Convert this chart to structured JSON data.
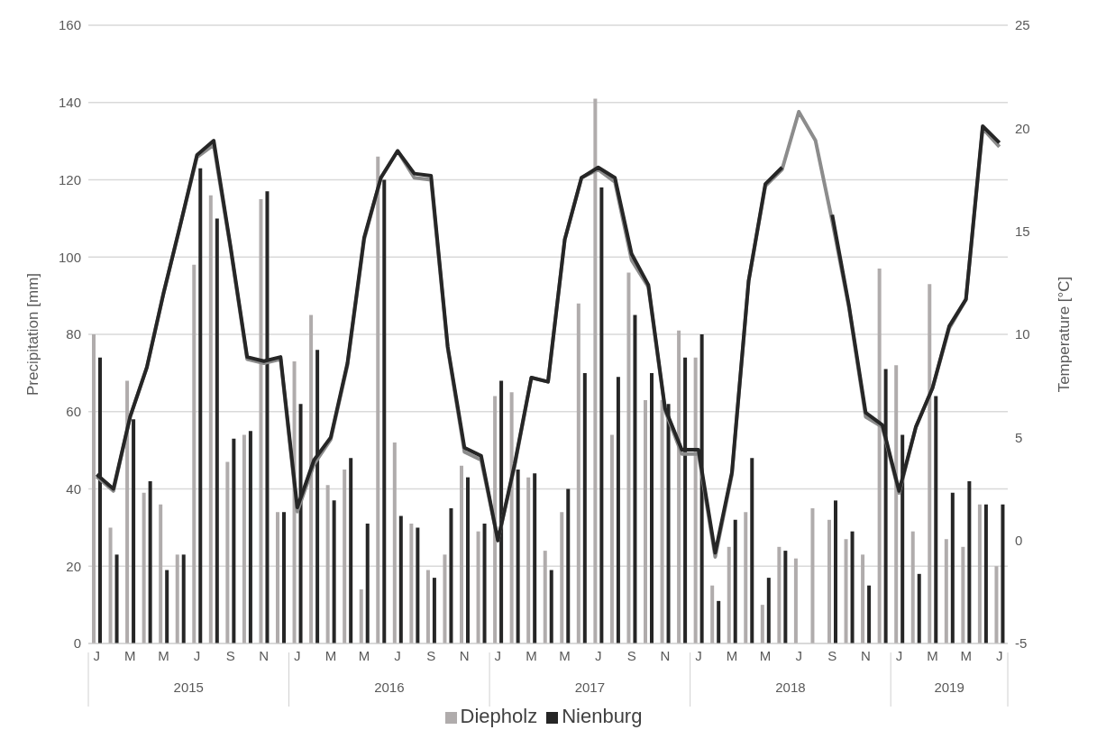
{
  "chart_data": {
    "type": "bar",
    "categories": [
      "J",
      null,
      "M",
      null,
      "M",
      null,
      "J",
      null,
      "S",
      null,
      "N",
      null,
      "J",
      null,
      "M",
      null,
      "M",
      null,
      "J",
      null,
      "S",
      null,
      "N",
      null,
      "J",
      null,
      "M",
      null,
      "M",
      null,
      "J",
      null,
      "S",
      null,
      "N",
      null,
      "J",
      null,
      "M",
      null,
      "M",
      null,
      "J",
      null,
      "S",
      null,
      "N",
      null,
      "J",
      null,
      "M",
      null,
      "M",
      null,
      "J"
    ],
    "series": [
      {
        "name": "Diepholz",
        "color": "#b0acac",
        "values": [
          80,
          30,
          68,
          39,
          36,
          23,
          98,
          116,
          47,
          54,
          115,
          34,
          73,
          85,
          41,
          45,
          14,
          126,
          52,
          31,
          19,
          23,
          46,
          29,
          64,
          65,
          43,
          24,
          34,
          88,
          141,
          54,
          96,
          63,
          63,
          81,
          74,
          15,
          25,
          34,
          10,
          25,
          22,
          35,
          32,
          27,
          23,
          97,
          72,
          29,
          93,
          27,
          25,
          36,
          20
        ]
      },
      {
        "name": "Nienburg",
        "color": "#262626",
        "values": [
          74,
          23,
          58,
          42,
          19,
          23,
          123,
          110,
          53,
          55,
          117,
          34,
          62,
          76,
          37,
          48,
          31,
          120,
          33,
          30,
          17,
          35,
          43,
          31,
          68,
          45,
          44,
          19,
          40,
          70,
          118,
          69,
          85,
          70,
          62,
          74,
          80,
          11,
          32,
          48,
          17,
          24,
          null,
          null,
          37,
          29,
          15,
          71,
          54,
          18,
          64,
          39,
          42,
          36,
          36
        ]
      },
      {
        "type": "line",
        "axis": "y2",
        "color": "#8c8c8c",
        "values": [
          3.1,
          2.4,
          6.0,
          8.4,
          12.0,
          15.3,
          18.6,
          19.2,
          14.2,
          8.8,
          8.6,
          8.8,
          1.4,
          3.7,
          4.9,
          8.5,
          14.6,
          17.6,
          18.9,
          17.6,
          17.5,
          9.3,
          4.3,
          3.9,
          0.0,
          3.6,
          7.9,
          7.7,
          14.6,
          17.6,
          18.0,
          17.4,
          13.6,
          12.3,
          6.3,
          4.2,
          4.2,
          -0.8,
          3.2,
          12.6,
          17.2,
          18.0,
          20.8,
          19.4,
          15.5,
          11.3,
          6.0,
          5.5,
          2.3,
          5.5,
          7.4,
          10.3,
          11.7,
          20.0,
          19.1
        ]
      },
      {
        "type": "line",
        "axis": "y2",
        "color": "#262626",
        "values": [
          3.2,
          2.5,
          6.0,
          8.4,
          12.0,
          15.3,
          18.7,
          19.4,
          14.3,
          8.9,
          8.7,
          8.9,
          1.6,
          3.9,
          5.0,
          8.6,
          14.7,
          17.6,
          18.9,
          17.8,
          17.7,
          9.4,
          4.5,
          4.1,
          0.0,
          3.7,
          7.9,
          7.7,
          14.6,
          17.6,
          18.1,
          17.6,
          13.9,
          12.4,
          6.4,
          4.4,
          4.4,
          -0.6,
          3.3,
          12.6,
          17.3,
          18.1,
          null,
          null,
          15.8,
          11.4,
          6.2,
          5.6,
          2.4,
          5.5,
          7.4,
          10.4,
          11.7,
          20.1,
          19.3
        ]
      }
    ],
    "ylim": [
      0,
      160
    ],
    "yticks": [
      0,
      20,
      40,
      60,
      80,
      100,
      120,
      140,
      160
    ],
    "y2lim": [
      -5,
      25
    ],
    "y2ticks": [
      -5,
      0,
      5,
      10,
      15,
      20,
      25
    ],
    "ylabel": "Precipitation [mm]",
    "y2label": "Temperature [°C]",
    "annotations": [
      "2015",
      "2016",
      "2017",
      "2018",
      "2019"
    ],
    "grid": "y",
    "legend": "bottom",
    "marker": "none"
  }
}
